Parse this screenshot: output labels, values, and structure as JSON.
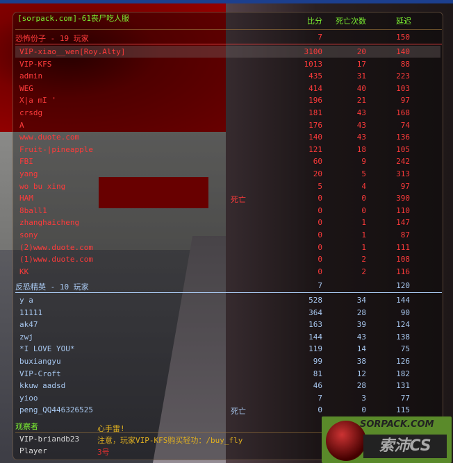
{
  "server_title": "[sorpack.com]-61丧尸吃人服",
  "columns": {
    "score": "比分",
    "deaths": "死亡次数",
    "ping": "延迟"
  },
  "terrorists": {
    "header": "恐怖份子   -   19 玩家",
    "score": "7",
    "ping": "150",
    "color": "#ff3b3b",
    "players": [
      {
        "name": "VIP-xiao__wen[Roy.Alty]",
        "status": "",
        "score": "3100",
        "deaths": "20",
        "ping": "140"
      },
      {
        "name": "VIP-KFS",
        "status": "",
        "score": "1013",
        "deaths": "17",
        "ping": "88"
      },
      {
        "name": "admin",
        "status": "",
        "score": "435",
        "deaths": "31",
        "ping": "223"
      },
      {
        "name": "WEG",
        "status": "",
        "score": "414",
        "deaths": "40",
        "ping": "103"
      },
      {
        "name": "X|a mI '",
        "status": "",
        "score": "196",
        "deaths": "21",
        "ping": "97"
      },
      {
        "name": "crsdg",
        "status": "",
        "score": "181",
        "deaths": "43",
        "ping": "168"
      },
      {
        "name": "A",
        "status": "",
        "score": "176",
        "deaths": "43",
        "ping": "74"
      },
      {
        "name": "www.duote.com",
        "status": "",
        "score": "140",
        "deaths": "43",
        "ping": "136"
      },
      {
        "name": "Fruit-|pineapple",
        "status": "",
        "score": "121",
        "deaths": "18",
        "ping": "105"
      },
      {
        "name": "FBI",
        "status": "",
        "score": "60",
        "deaths": "9",
        "ping": "242"
      },
      {
        "name": "yang",
        "status": "",
        "score": "20",
        "deaths": "5",
        "ping": "313"
      },
      {
        "name": "wo bu xing",
        "status": "",
        "score": "5",
        "deaths": "4",
        "ping": "97"
      },
      {
        "name": "HAM",
        "status": "死亡",
        "score": "0",
        "deaths": "0",
        "ping": "390"
      },
      {
        "name": "8ball1",
        "status": "",
        "score": "0",
        "deaths": "0",
        "ping": "110"
      },
      {
        "name": "zhanghaicheng",
        "status": "",
        "score": "0",
        "deaths": "1",
        "ping": "147"
      },
      {
        "name": "sony",
        "status": "",
        "score": "0",
        "deaths": "1",
        "ping": "87"
      },
      {
        "name": "(2)www.duote.com",
        "status": "",
        "score": "0",
        "deaths": "1",
        "ping": "111"
      },
      {
        "name": "(1)www.duote.com",
        "status": "",
        "score": "0",
        "deaths": "2",
        "ping": "108"
      },
      {
        "name": "KK",
        "status": "",
        "score": "0",
        "deaths": "2",
        "ping": "116"
      }
    ]
  },
  "counter_terrorists": {
    "header": "反恐精英   -   10 玩家",
    "score": "7",
    "ping": "120",
    "color": "#a8c8f0",
    "players": [
      {
        "name": "y a",
        "status": "",
        "score": "528",
        "deaths": "34",
        "ping": "144"
      },
      {
        "name": "11111",
        "status": "",
        "score": "364",
        "deaths": "28",
        "ping": "90"
      },
      {
        "name": "ak47",
        "status": "",
        "score": "163",
        "deaths": "39",
        "ping": "124"
      },
      {
        "name": "zwj",
        "status": "",
        "score": "144",
        "deaths": "43",
        "ping": "138"
      },
      {
        "name": "*I LOVE YOU*",
        "status": "",
        "score": "119",
        "deaths": "14",
        "ping": "75"
      },
      {
        "name": "buxiangyu",
        "status": "",
        "score": "99",
        "deaths": "38",
        "ping": "126"
      },
      {
        "name": "VIP-Croft",
        "status": "",
        "score": "81",
        "deaths": "12",
        "ping": "182"
      },
      {
        "name": "kkuw aadsd",
        "status": "",
        "score": "46",
        "deaths": "28",
        "ping": "131"
      },
      {
        "name": "yioo",
        "status": "",
        "score": "7",
        "deaths": "3",
        "ping": "77"
      },
      {
        "name": "peng_QQ446326525",
        "status": "死亡",
        "score": "0",
        "deaths": "0",
        "ping": "115"
      }
    ]
  },
  "spectators": {
    "header": "观察者",
    "players": [
      "VIP-briandb23",
      "Player"
    ]
  },
  "chat": [
    "心手雷!",
    "注意，玩家VIP-KFS购买轻功：/buy_fly",
    "3号"
  ],
  "watermark": {
    "top": "SORPACK.COM",
    "bottom": "索沛CS"
  }
}
